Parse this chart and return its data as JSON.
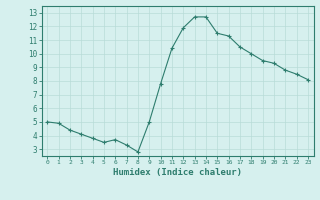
{
  "x": [
    0,
    1,
    2,
    3,
    4,
    5,
    6,
    7,
    8,
    9,
    10,
    11,
    12,
    13,
    14,
    15,
    16,
    17,
    18,
    19,
    20,
    21,
    22,
    23
  ],
  "y": [
    5.0,
    4.9,
    4.4,
    4.1,
    3.8,
    3.5,
    3.7,
    3.3,
    2.8,
    5.0,
    7.8,
    10.4,
    11.9,
    12.7,
    12.7,
    11.5,
    11.3,
    10.5,
    10.0,
    9.5,
    9.3,
    8.8,
    8.5,
    8.1
  ],
  "xlabel": "Humidex (Indice chaleur)",
  "ylim": [
    2.5,
    13.5
  ],
  "xlim": [
    -0.5,
    23.5
  ],
  "yticks": [
    3,
    4,
    5,
    6,
    7,
    8,
    9,
    10,
    11,
    12,
    13
  ],
  "xticks": [
    0,
    1,
    2,
    3,
    4,
    5,
    6,
    7,
    8,
    9,
    10,
    11,
    12,
    13,
    14,
    15,
    16,
    17,
    18,
    19,
    20,
    21,
    22,
    23
  ],
  "line_color": "#2e7d6e",
  "marker": "+",
  "bg_color": "#d6f0ee",
  "grid_color": "#b8dcd8",
  "tick_color": "#2e7d6e",
  "label_color": "#2e7d6e"
}
